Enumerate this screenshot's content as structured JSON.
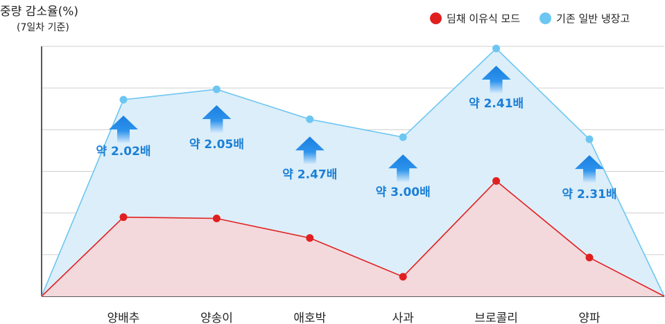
{
  "title": "중량 감소율(%)",
  "subtitle": "(7일차 기준)",
  "legend": [
    {
      "label": "딤채 이유식 모드",
      "color": "#e02020"
    },
    {
      "label": "기존 일반 냉장고",
      "color": "#6cc6f2"
    }
  ],
  "chart_data": {
    "type": "area",
    "categories": [
      "양배추",
      "양송이",
      "애호박",
      "사과",
      "브로콜리",
      "양파"
    ],
    "ylim": [
      0,
      6
    ],
    "grid": true,
    "legend_position": "top-right",
    "series": [
      {
        "name": "딤채 이유식 모드",
        "color": "#e02020",
        "fill": "#f3d8dc",
        "values": [
          1.9,
          1.87,
          1.4,
          0.47,
          2.77,
          0.93
        ]
      },
      {
        "name": "기존 일반 냉장고",
        "color": "#6cc6f2",
        "fill": "#dceef9",
        "values": [
          4.72,
          4.97,
          4.25,
          3.82,
          5.95,
          3.77
        ]
      }
    ],
    "annotations": [
      "약 2.02배",
      "약 2.05배",
      "약 2.47배",
      "약 3.00배",
      "약 2.41배",
      "약 2.31배"
    ]
  }
}
